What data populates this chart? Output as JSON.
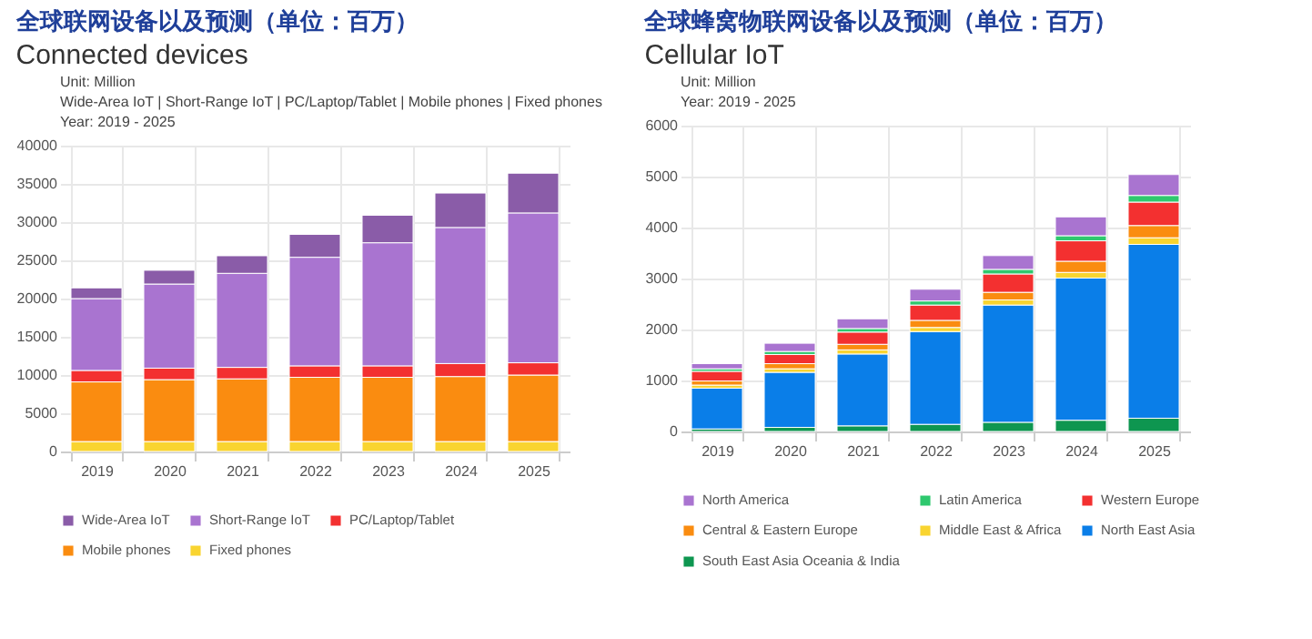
{
  "chart_data": [
    {
      "type": "bar",
      "title": "全球联网设备以及预测（单位：百万）",
      "subtitle": "Connected devices",
      "annotations": [
        "Unit: Million",
        "Wide-Area IoT | Short-Range IoT | PC/Laptop/Tablet | Mobile phones | Fixed phones",
        "Year: 2019 - 2025"
      ],
      "categories": [
        "2019",
        "2020",
        "2021",
        "2022",
        "2023",
        "2024",
        "2025"
      ],
      "stacked": true,
      "ylim": [
        0,
        40000
      ],
      "yticks": [
        0,
        5000,
        10000,
        15000,
        20000,
        25000,
        30000,
        35000,
        40000
      ],
      "grid": true,
      "legend": "bottom",
      "series": [
        {
          "name": "Fixed phones",
          "color": "#f9d430",
          "values": [
            1300,
            1300,
            1300,
            1300,
            1300,
            1300,
            1300
          ]
        },
        {
          "name": "Mobile phones",
          "color": "#fa8c10",
          "values": [
            7800,
            8100,
            8200,
            8400,
            8400,
            8500,
            8700
          ]
        },
        {
          "name": "PC/Laptop/Tablet",
          "color": "#f33030",
          "values": [
            1500,
            1500,
            1500,
            1500,
            1500,
            1700,
            1600
          ]
        },
        {
          "name": "Short-Range IoT",
          "color": "#a974d0",
          "values": [
            9400,
            11000,
            12300,
            14200,
            16100,
            17800,
            19600
          ]
        },
        {
          "name": "Wide-Area IoT",
          "color": "#8a5ca8",
          "values": [
            1400,
            1800,
            2300,
            3000,
            3600,
            4500,
            5200
          ]
        }
      ]
    },
    {
      "type": "bar",
      "title": "全球蜂窝物联网设备以及预测（单位：百万）",
      "subtitle": "Cellular IoT",
      "annotations": [
        "Unit: Million",
        "Year: 2019 - 2025"
      ],
      "categories": [
        "2019",
        "2020",
        "2021",
        "2022",
        "2023",
        "2024",
        "2025"
      ],
      "stacked": true,
      "ylim": [
        0,
        6000
      ],
      "yticks": [
        0,
        1000,
        2000,
        3000,
        4000,
        5000,
        6000
      ],
      "grid": true,
      "legend": "bottom",
      "series": [
        {
          "name": "South East Asia Oceania & India",
          "color": "#0e9650",
          "values": [
            50,
            80,
            110,
            140,
            180,
            220,
            260
          ]
        },
        {
          "name": "North East Asia",
          "color": "#0a7ee8",
          "values": [
            800,
            1080,
            1410,
            1820,
            2300,
            2790,
            3410
          ]
        },
        {
          "name": "Middle East & Africa",
          "color": "#f9d430",
          "values": [
            60,
            70,
            80,
            80,
            100,
            110,
            130
          ]
        },
        {
          "name": "Central & Eastern Europe",
          "color": "#fa8c10",
          "values": [
            80,
            100,
            110,
            140,
            150,
            220,
            240
          ]
        },
        {
          "name": "Western Europe",
          "color": "#f33030",
          "values": [
            190,
            180,
            240,
            300,
            360,
            400,
            460
          ]
        },
        {
          "name": "Latin America",
          "color": "#2ec86e",
          "values": [
            50,
            60,
            70,
            80,
            90,
            100,
            130
          ]
        },
        {
          "name": "North America",
          "color": "#a974d0",
          "values": [
            100,
            160,
            190,
            230,
            270,
            370,
            410
          ]
        }
      ]
    }
  ]
}
